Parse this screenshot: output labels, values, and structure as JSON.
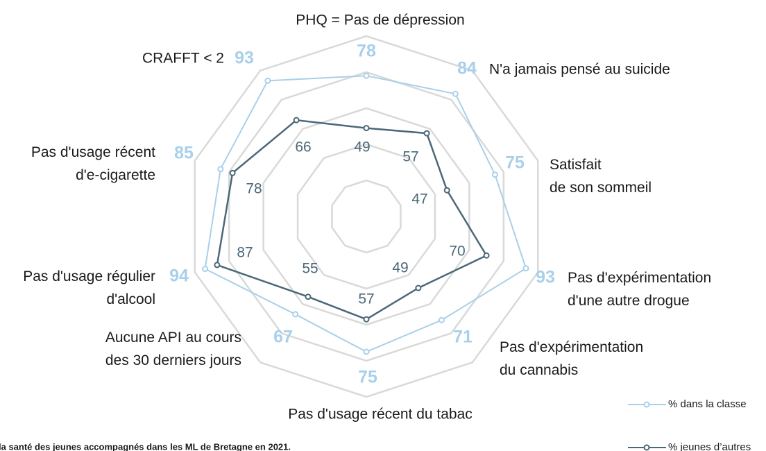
{
  "chart_data": {
    "type": "radar",
    "categories": [
      "PHQ = Pas de dépression",
      "N'a jamais pensé au suicide",
      "Satisfait\nde son sommeil",
      "Pas d'expérimentation\nd'une autre drogue",
      "Pas d'expérimentation\ndu cannabis",
      "Pas d'usage récent du tabac",
      "Aucune API au cours\ndes 30 derniers jours",
      "Pas d'usage régulier\nd'alcool",
      "Pas d'usage récent\nd'e-cigarette",
      "CRAFFT < 2"
    ],
    "series": [
      {
        "name": "% dans la classe",
        "color": "#a8d0ea",
        "values": [
          78,
          84,
          75,
          93,
          71,
          75,
          67,
          94,
          85,
          93
        ]
      },
      {
        "name": "% jeunes d’autres",
        "color": "#4a6878",
        "values": [
          49,
          57,
          47,
          70,
          49,
          57,
          55,
          87,
          78,
          66
        ]
      }
    ],
    "rlim": [
      0,
      100
    ],
    "rticks": [
      20,
      40,
      60,
      80,
      100
    ],
    "grid": true,
    "footnote": "la santé des jeunes accompagnés dans les ML de Bretagne en 2021."
  }
}
